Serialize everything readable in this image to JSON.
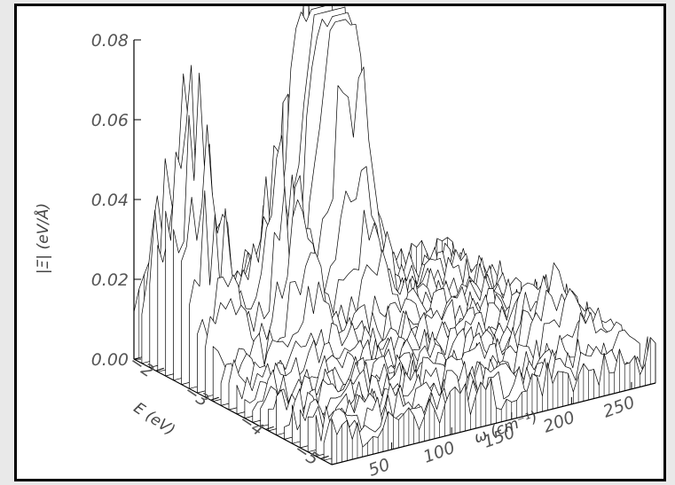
{
  "chart_data": {
    "type": "surface",
    "z_axis": {
      "label": "|Ξ| (eV/Å)",
      "range": [
        0.0,
        0.08
      ],
      "ticks": [
        "0.00",
        "0.02",
        "0.04",
        "0.06",
        "0.08"
      ]
    },
    "x_axis": {
      "label": "ω (cm⁻¹)",
      "range": [
        0,
        270
      ],
      "ticks": [
        "50",
        "100",
        "150",
        "200",
        "250"
      ]
    },
    "y_axis": {
      "label": "E (eV)",
      "range": [
        -5.2,
        -1.6
      ],
      "ticks": [
        "-2",
        "-3",
        "-4",
        "-5"
      ]
    },
    "features": {
      "peaks": [
        {
          "omega": 20,
          "E": -2.2,
          "height": 0.064
        },
        {
          "omega": 80,
          "E": -2.6,
          "height": 0.044
        },
        {
          "omega": 140,
          "E": -1.8,
          "height": 0.074
        },
        {
          "omega": 155,
          "E": -2.0,
          "height": 0.059
        },
        {
          "omega": 230,
          "E": -4.2,
          "height": 0.016
        }
      ],
      "background_level": 0.008
    }
  }
}
